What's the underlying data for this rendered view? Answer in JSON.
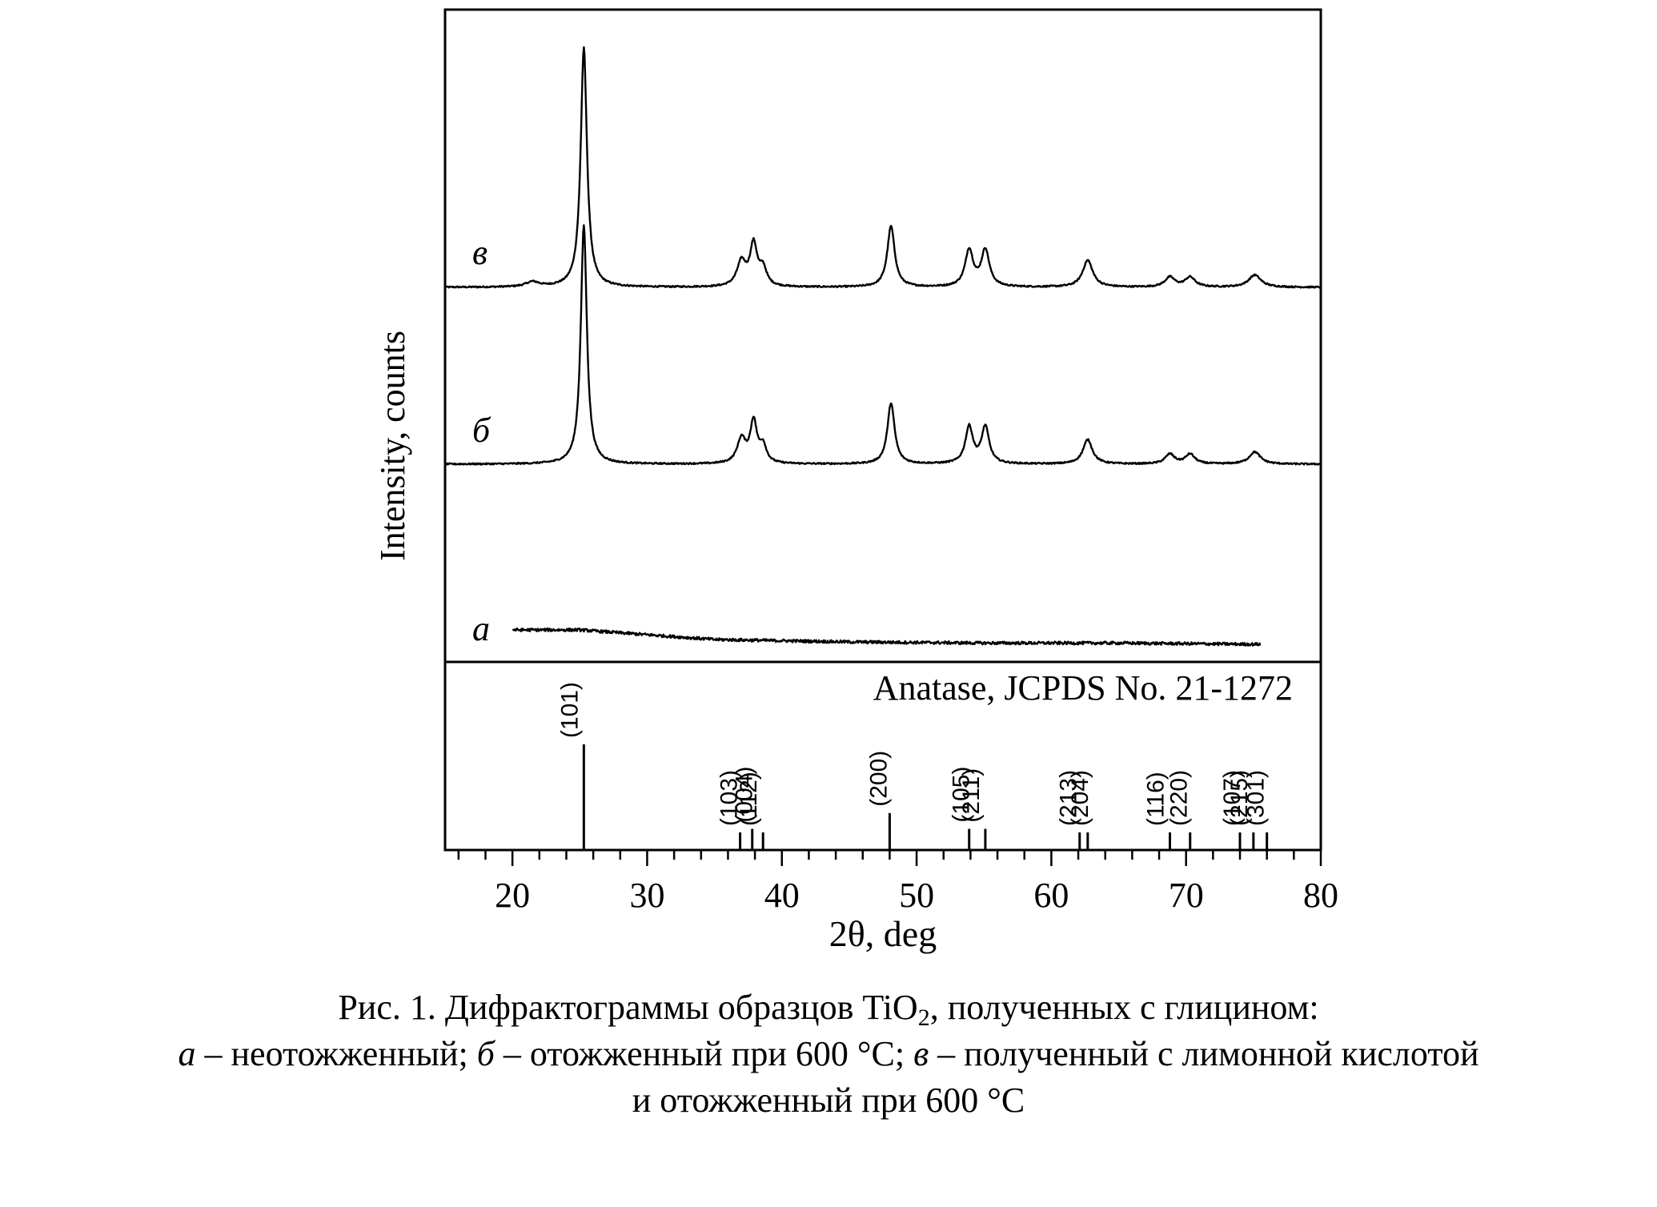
{
  "chart_data": {
    "type": "line",
    "xlabel": "2θ, deg",
    "ylabel": "Intensity, counts",
    "xlim": [
      15,
      80
    ],
    "xticks_major": [
      20,
      30,
      40,
      50,
      60,
      70,
      80
    ],
    "xticks_minor_step": 2,
    "grid": false,
    "series": [
      {
        "name": "в",
        "baseline": 0,
        "noise": 0.003,
        "peaks": [
          {
            "x": 21.5,
            "h": 0.02,
            "w": 0.6
          },
          {
            "x": 25.3,
            "h": 0.98,
            "w": 0.28
          },
          {
            "x": 37.0,
            "h": 0.1,
            "w": 0.4
          },
          {
            "x": 37.9,
            "h": 0.17,
            "w": 0.32
          },
          {
            "x": 38.6,
            "h": 0.07,
            "w": 0.32
          },
          {
            "x": 48.1,
            "h": 0.25,
            "w": 0.33
          },
          {
            "x": 53.9,
            "h": 0.15,
            "w": 0.36
          },
          {
            "x": 55.1,
            "h": 0.15,
            "w": 0.36
          },
          {
            "x": 62.7,
            "h": 0.11,
            "w": 0.45
          },
          {
            "x": 68.8,
            "h": 0.04,
            "w": 0.45
          },
          {
            "x": 70.3,
            "h": 0.04,
            "w": 0.45
          },
          {
            "x": 75.1,
            "h": 0.05,
            "w": 0.55
          }
        ]
      },
      {
        "name": "б",
        "baseline": 0,
        "noise": 0.003,
        "peaks": [
          {
            "x": 25.3,
            "h": 0.98,
            "w": 0.27
          },
          {
            "x": 37.0,
            "h": 0.1,
            "w": 0.38
          },
          {
            "x": 37.9,
            "h": 0.17,
            "w": 0.3
          },
          {
            "x": 38.6,
            "h": 0.07,
            "w": 0.3
          },
          {
            "x": 48.1,
            "h": 0.25,
            "w": 0.32
          },
          {
            "x": 53.9,
            "h": 0.15,
            "w": 0.34
          },
          {
            "x": 55.1,
            "h": 0.15,
            "w": 0.34
          },
          {
            "x": 62.7,
            "h": 0.1,
            "w": 0.42
          },
          {
            "x": 68.8,
            "h": 0.04,
            "w": 0.42
          },
          {
            "x": 70.3,
            "h": 0.04,
            "w": 0.42
          },
          {
            "x": 75.1,
            "h": 0.05,
            "w": 0.5
          }
        ]
      },
      {
        "name": "а",
        "x_range": [
          20,
          75.5
        ],
        "baseline_points": [
          [
            20,
            0.09
          ],
          [
            25,
            0.09
          ],
          [
            30,
            0.06
          ],
          [
            35,
            0.03
          ],
          [
            45,
            0.015
          ],
          [
            55,
            0.008
          ],
          [
            65,
            0.008
          ],
          [
            75.5,
            0.0
          ]
        ],
        "noise": 0.009,
        "peaks": []
      }
    ],
    "series_labels": [
      "в",
      "б",
      "a"
    ],
    "reference": {
      "title": "Anatase, JCPDS No. 21-1272",
      "lines": [
        {
          "x": 25.3,
          "intensity": 100,
          "hkl": "(101)"
        },
        {
          "x": 36.9,
          "intensity": 10,
          "hkl": "(103)"
        },
        {
          "x": 37.8,
          "intensity": 20,
          "hkl": "(004)"
        },
        {
          "x": 38.6,
          "intensity": 10,
          "hkl": "(112)"
        },
        {
          "x": 48.0,
          "intensity": 35,
          "hkl": "(200)"
        },
        {
          "x": 53.9,
          "intensity": 20,
          "hkl": "(105)"
        },
        {
          "x": 55.1,
          "intensity": 20,
          "hkl": "(211)"
        },
        {
          "x": 62.1,
          "intensity": 4,
          "hkl": "(213)"
        },
        {
          "x": 62.7,
          "intensity": 14,
          "hkl": "(204)"
        },
        {
          "x": 68.8,
          "intensity": 6,
          "hkl": "(116)"
        },
        {
          "x": 70.3,
          "intensity": 6,
          "hkl": "(220)"
        },
        {
          "x": 74.0,
          "intensity": 2,
          "hkl": "(107)"
        },
        {
          "x": 75.0,
          "intensity": 10,
          "hkl": "(215)"
        },
        {
          "x": 76.0,
          "intensity": 4,
          "hkl": "(301)"
        }
      ]
    }
  },
  "caption": {
    "line1_a": "Рис. 1. Дифрактограммы образцов TiO",
    "line1_sub": "2",
    "line1_b": ", полученных с глицином:",
    "line2_a_label": "а",
    "line2_a_text": " – неотожженный; ",
    "line2_b_label": "б",
    "line2_b_text": " – отожженный при 600 °C; ",
    "line2_v_label": "в",
    "line2_v_text": " – полученный с лимонной кислотой",
    "line3": "и отожженный при 600 °C"
  }
}
